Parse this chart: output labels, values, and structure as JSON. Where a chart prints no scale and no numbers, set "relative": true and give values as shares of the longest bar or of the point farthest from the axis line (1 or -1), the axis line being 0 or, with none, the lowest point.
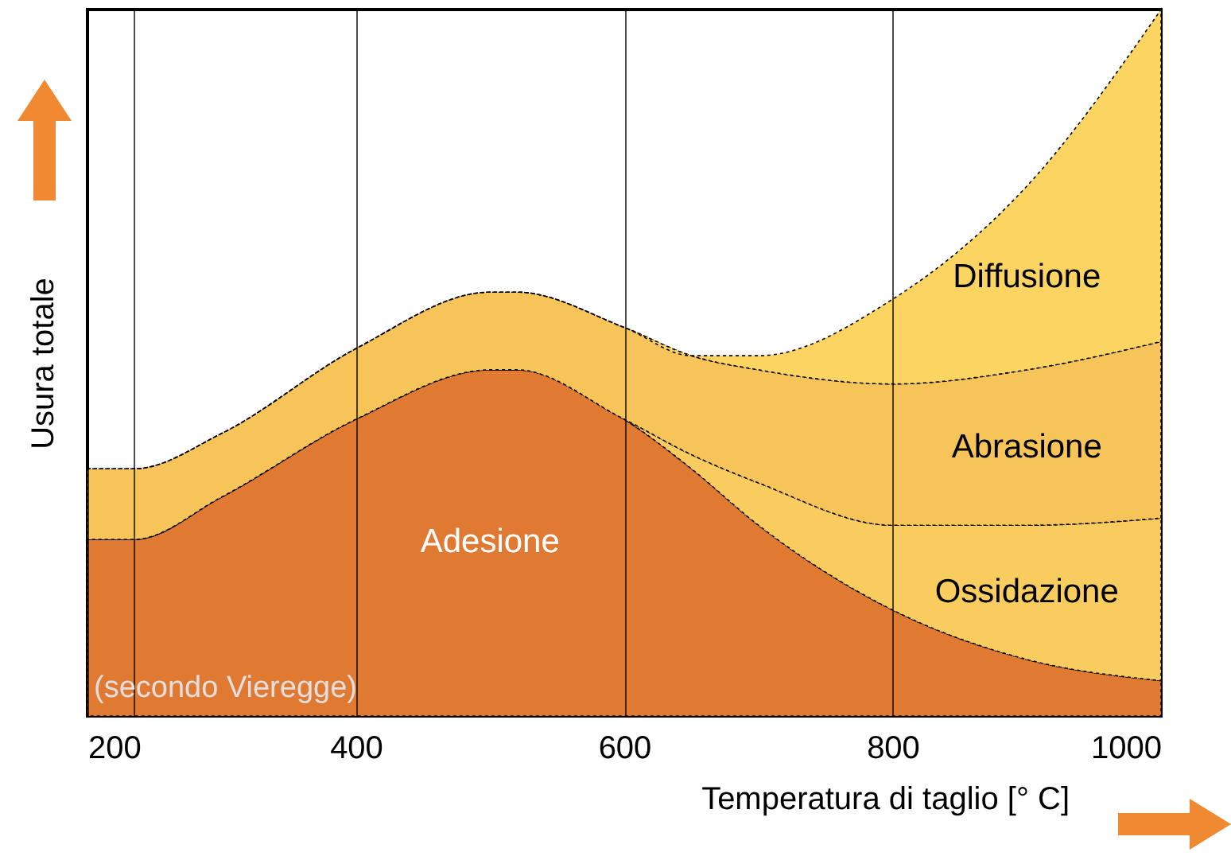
{
  "chart_data": {
    "type": "area",
    "relative": true,
    "stacked": true,
    "xlabel": "Temperatura di taglio [° C]",
    "ylabel": "Usura totale",
    "x": [
      200,
      235,
      300,
      400,
      500,
      520,
      600,
      650,
      700,
      800,
      900,
      1000
    ],
    "xlim": [
      200,
      1000
    ],
    "xticks": [
      200,
      400,
      600,
      800,
      1000
    ],
    "grid": "x",
    "line_style": "dotted",
    "ref_lines": [
      {
        "axis": "x",
        "value": 235,
        "label": null
      }
    ],
    "annotations": [
      "(secondo Vieregge)"
    ],
    "series": [
      {
        "name": "Adesione",
        "color": "#e07a33",
        "values": [
          0.25,
          0.25,
          0.31,
          0.42,
          0.49,
          0.49,
          0.42,
          0.35,
          0.27,
          0.15,
          0.08,
          0.05
        ]
      },
      {
        "name": "Ossidazione",
        "color": "#f8cc5e",
        "values": [
          0,
          0,
          0,
          0,
          0,
          0,
          0,
          0.02,
          0.06,
          0.12,
          0.19,
          0.23
        ]
      },
      {
        "name": "Abrasione",
        "color": "#f6c458",
        "values": [
          0.1,
          0.1,
          0.09,
          0.1,
          0.11,
          0.11,
          0.13,
          0.14,
          0.16,
          0.2,
          0.22,
          0.25
        ]
      },
      {
        "name": "Diffusione",
        "color": "#fcd462",
        "values": [
          0,
          0,
          0,
          0,
          0,
          0,
          0,
          0,
          0.02,
          0.12,
          0.26,
          0.47
        ]
      }
    ]
  }
}
